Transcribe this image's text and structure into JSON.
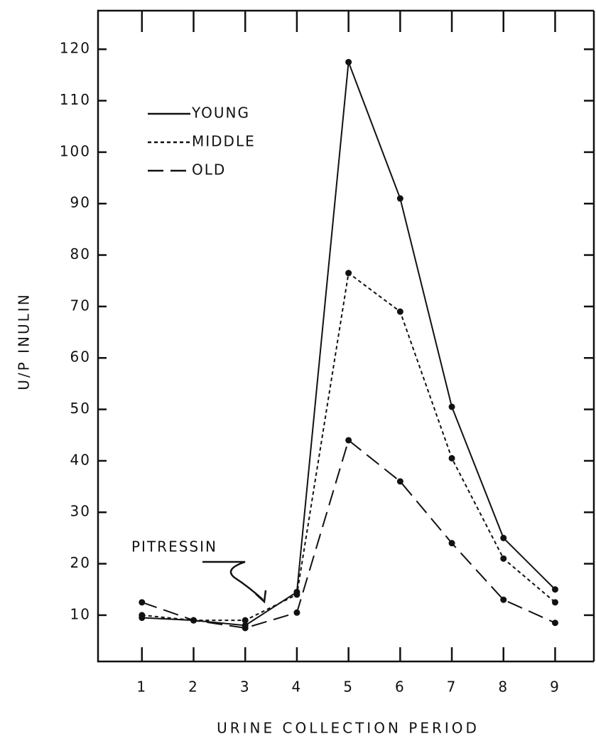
{
  "chart_data": {
    "type": "line",
    "xlabel": "URINE COLLECTION PERIOD",
    "ylabel": "U/P INULIN",
    "annotation": "PITRESSIN",
    "x": [
      1,
      2,
      3,
      4,
      5,
      6,
      7,
      8,
      9
    ],
    "series": [
      {
        "name": "YOUNG",
        "color": "#111111",
        "style": "solid",
        "values": [
          9.5,
          9,
          8,
          14.5,
          117.5,
          91,
          50.5,
          25,
          15
        ]
      },
      {
        "name": "MIDDLE",
        "color": "#111111",
        "style": "dotted",
        "values": [
          10,
          9,
          9,
          14,
          76.5,
          69,
          40.5,
          21,
          12.5
        ]
      },
      {
        "name": "OLD",
        "color": "#111111",
        "style": "dashed",
        "values": [
          12.5,
          9,
          7.5,
          10.5,
          44,
          36,
          24,
          13,
          8.5
        ]
      }
    ],
    "xlim": [
      0.15,
      9.75
    ],
    "ylim": [
      1,
      127.5
    ],
    "xticks": [
      1,
      2,
      3,
      4,
      5,
      6,
      7,
      8,
      9
    ],
    "yticks": [
      10,
      20,
      30,
      40,
      50,
      60,
      70,
      80,
      90,
      100,
      110,
      120
    ],
    "legend": "upper left",
    "grid": false
  }
}
